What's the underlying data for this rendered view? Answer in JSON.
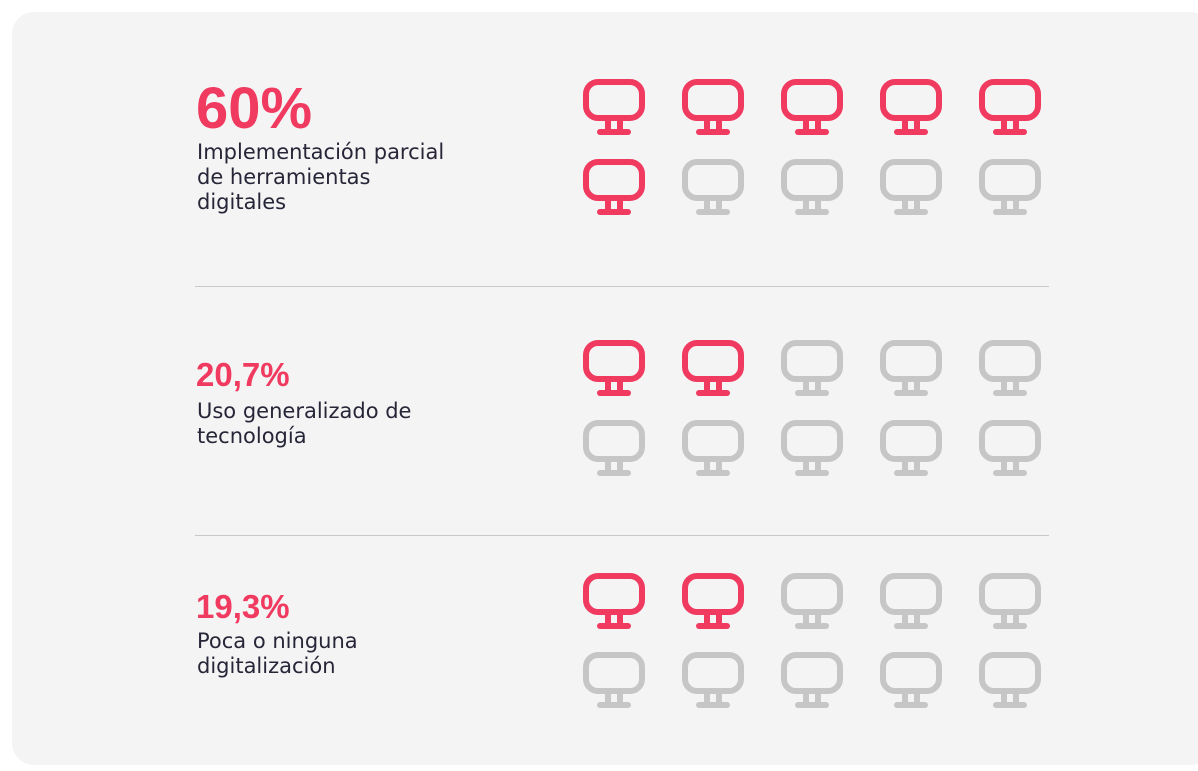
{
  "rows": [
    {
      "value_label": "60%",
      "label_lines": [
        "Implementación parcial",
        "de herramientas",
        "digitales"
      ],
      "filled": 6,
      "total": 10
    },
    {
      "value_label": "20,7%",
      "label_lines": [
        "Uso generalizado de",
        "tecnología"
      ],
      "filled": 2,
      "total": 10
    },
    {
      "value_label": "19,3%",
      "label_lines": [
        "Poca o ninguna",
        "digitalización"
      ],
      "filled": 2,
      "total": 10
    }
  ]
}
